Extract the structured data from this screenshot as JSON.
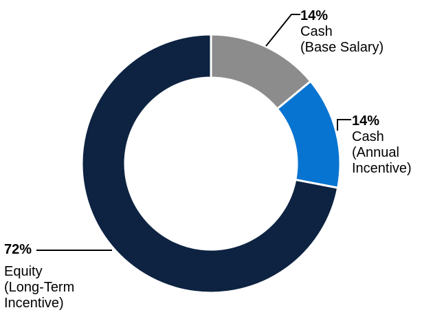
{
  "chart_data": {
    "type": "pie",
    "variant": "donut",
    "start_angle": "top",
    "direction": "clockwise",
    "inner_radius_ratio": 0.665,
    "legend_position": "callout-labels",
    "segments": [
      {
        "label": "Cash (Base Salary)",
        "value_pct": 14,
        "color": "#8C8C8C"
      },
      {
        "label": "Cash (Annual Incentive)",
        "value_pct": 14,
        "color": "#0874D1"
      },
      {
        "label": "Equity (Long-Term Incentive)",
        "value_pct": 72,
        "color": "#0D2341"
      }
    ]
  },
  "labels": {
    "base_salary": {
      "pct": "14%",
      "lines": [
        "Cash",
        "(Base Salary)"
      ]
    },
    "annual_incentive": {
      "pct": "14%",
      "lines": [
        "Cash",
        "(Annual",
        "Incentive)"
      ]
    },
    "equity": {
      "pct": "72%",
      "lines": [
        "Equity",
        "(Long-Term",
        "Incentive)"
      ]
    }
  },
  "colors": {
    "background": "#FFFFFF",
    "text": "#000000",
    "leader_line": "#000000",
    "segment_gap": "#FFFFFF"
  }
}
